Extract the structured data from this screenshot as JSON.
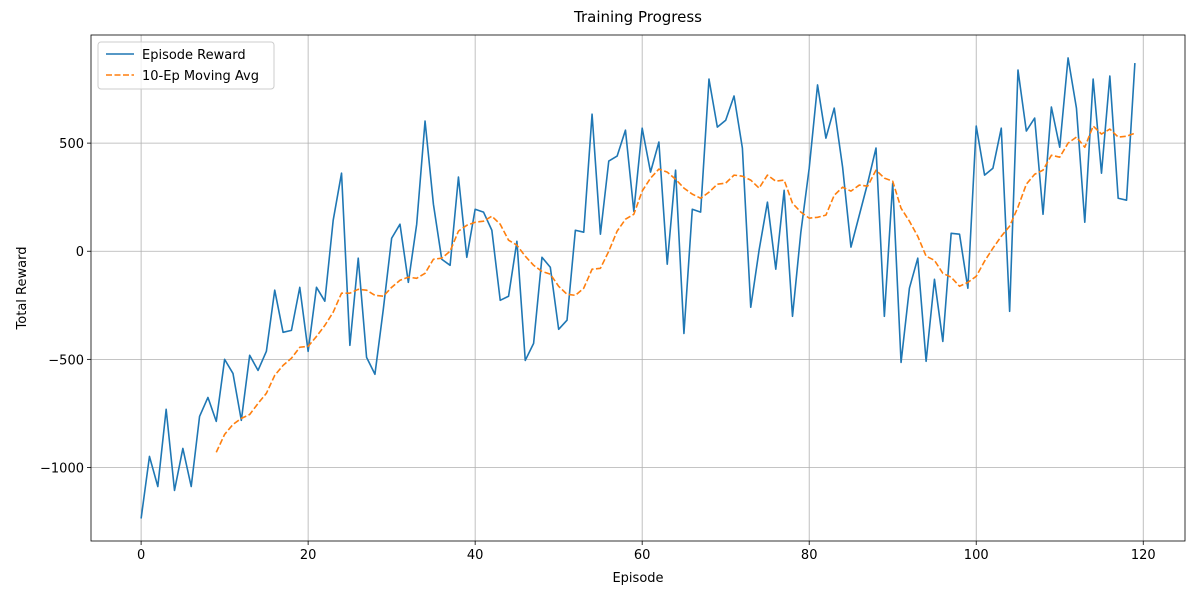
{
  "chart_data": {
    "type": "line",
    "title": "Training Progress",
    "x_label": "Episode",
    "y_label": "Total Reward",
    "x": [
      0,
      1,
      2,
      3,
      4,
      5,
      6,
      7,
      8,
      9,
      10,
      11,
      12,
      13,
      14,
      15,
      16,
      17,
      18,
      19,
      20,
      21,
      22,
      23,
      24,
      25,
      26,
      27,
      28,
      29,
      30,
      31,
      32,
      33,
      34,
      35,
      36,
      37,
      38,
      39,
      40,
      41,
      42,
      43,
      44,
      45,
      46,
      47,
      48,
      49,
      50,
      51,
      52,
      53,
      54,
      55,
      56,
      57,
      58,
      59,
      60,
      61,
      62,
      63,
      64,
      65,
      66,
      67,
      68,
      69,
      70,
      71,
      72,
      73,
      74,
      75,
      76,
      77,
      78,
      79,
      80,
      81,
      82,
      83,
      84,
      85,
      86,
      87,
      88,
      89,
      90,
      91,
      92,
      93,
      94,
      95,
      96,
      97,
      98,
      99,
      100,
      101,
      102,
      103,
      104,
      105,
      106,
      107,
      108,
      109,
      110,
      111,
      112,
      113,
      114,
      115,
      116,
      117,
      118,
      119
    ],
    "series": [
      {
        "name": "Episode Reward",
        "color": "#1f77b4",
        "dash": "solid",
        "values": [
          -1236,
          -949,
          -1088,
          -731,
          -1106,
          -912,
          -1088,
          -764,
          -676,
          -787,
          -500,
          -565,
          -782,
          -481,
          -551,
          -463,
          -180,
          -375,
          -366,
          -167,
          -463,
          -167,
          -231,
          143,
          361,
          -435,
          -32,
          -491,
          -569,
          -269,
          60,
          125,
          -144,
          125,
          602,
          218,
          -37,
          -65,
          343,
          -28,
          194,
          181,
          97,
          -227,
          -208,
          46,
          -505,
          -426,
          -28,
          -74,
          -361,
          -319,
          97,
          88,
          634,
          79,
          417,
          440,
          560,
          185,
          569,
          366,
          505,
          -60,
          375,
          -380,
          194,
          181,
          796,
          574,
          606,
          718,
          477,
          -259,
          5,
          227,
          -83,
          282,
          -301,
          88,
          384,
          769,
          523,
          662,
          389,
          19,
          167,
          315,
          477,
          -301,
          315,
          -514,
          -171,
          -32,
          -509,
          -130,
          -417,
          83,
          79,
          -171,
          579,
          352,
          384,
          569,
          -278,
          838,
          556,
          616,
          171,
          667,
          481,
          894,
          662,
          134,
          796,
          361,
          810,
          245,
          236,
          870
        ]
      },
      {
        "name": "10-Ep Moving Avg",
        "color": "#ff7f0e",
        "dash": "dashed",
        "values": [
          null,
          null,
          null,
          null,
          null,
          null,
          null,
          null,
          null,
          -930,
          -847,
          -801,
          -773,
          -755,
          -704,
          -657,
          -574,
          -528,
          -495,
          -444,
          -440,
          -394,
          -343,
          -282,
          -194,
          -194,
          -176,
          -180,
          -204,
          -208,
          -167,
          -134,
          -120,
          -125,
          -102,
          -37,
          -32,
          0,
          93,
          120,
          134,
          139,
          162,
          125,
          51,
          28,
          -23,
          -65,
          -93,
          -106,
          -162,
          -199,
          -204,
          -171,
          -83,
          -79,
          0,
          93,
          148,
          171,
          278,
          338,
          380,
          366,
          333,
          292,
          264,
          245,
          273,
          310,
          315,
          352,
          347,
          329,
          292,
          352,
          324,
          329,
          222,
          181,
          153,
          157,
          167,
          259,
          296,
          278,
          306,
          301,
          375,
          338,
          324,
          199,
          139,
          69,
          -23,
          -42,
          -102,
          -120,
          -162,
          -144,
          -116,
          -46,
          14,
          69,
          116,
          204,
          310,
          356,
          375,
          444,
          435,
          500,
          528,
          481,
          579,
          542,
          565,
          528,
          532,
          546
        ]
      }
    ],
    "xlim": [
      -6,
      125
    ],
    "ylim": [
      -1340,
      1000
    ],
    "xticks": [
      0,
      20,
      40,
      60,
      80,
      100,
      120
    ],
    "yticks": [
      {
        "value": -1000,
        "label": "−1000"
      },
      {
        "value": -500,
        "label": "−500"
      },
      0,
      500
    ],
    "grid": true,
    "legend": "upper left"
  }
}
